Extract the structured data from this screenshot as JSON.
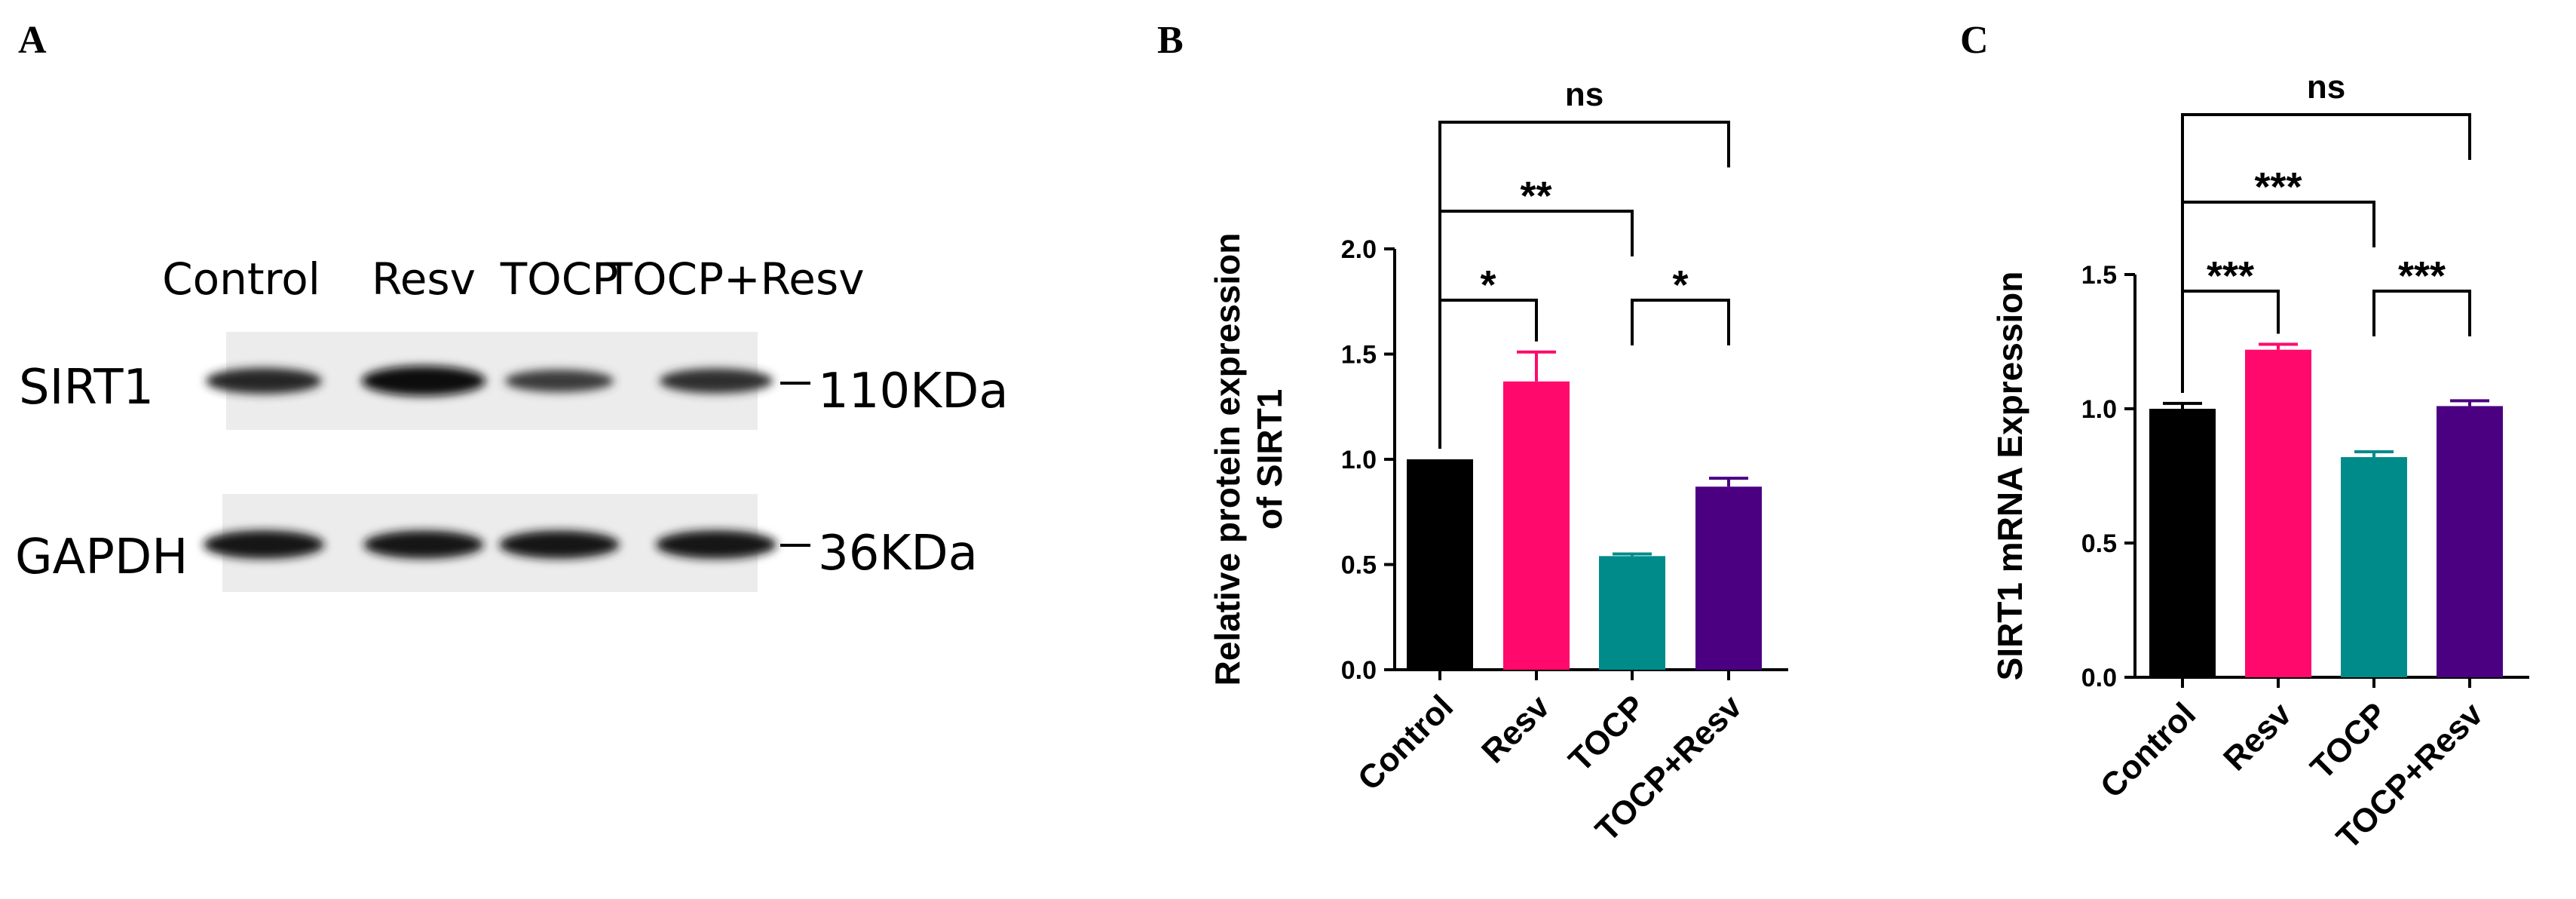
{
  "panels": {
    "a": {
      "label": "A"
    },
    "b": {
      "label": "B"
    },
    "c": {
      "label": "C"
    }
  },
  "western_blot": {
    "lanes": [
      "Control",
      "Resv",
      "TOCP",
      "TOCP+Resv"
    ],
    "proteins": [
      {
        "name": "SIRT1",
        "size_label": "110KDa",
        "band_intensity": [
          0.75,
          1.0,
          0.55,
          0.68
        ]
      },
      {
        "name": "GAPDH",
        "size_label": "36KDa",
        "band_intensity": [
          0.9,
          0.88,
          0.88,
          0.9
        ]
      }
    ]
  },
  "colors": {
    "Control": "#000000",
    "Resv": "#ff0a6c",
    "TOCP": "#008b8b",
    "TOCP+Resv": "#4b0082"
  },
  "chart_data": [
    {
      "panel": "B",
      "type": "bar",
      "categories": [
        "Control",
        "Resv",
        "TOCP",
        "TOCP+Resv"
      ],
      "values": [
        1.0,
        1.37,
        0.54,
        0.87
      ],
      "errors": [
        0.0,
        0.14,
        0.01,
        0.04
      ],
      "ylabel": "Relative protein expression of SIRT1",
      "ylabel_lines": [
        "Relative protein expression",
        "of SIRT1"
      ],
      "ylim": [
        0,
        2.0
      ],
      "yticks": [
        0.0,
        0.5,
        1.0,
        1.5,
        2.0
      ],
      "ytick_labels": [
        "0.0",
        "0.5",
        "1.0",
        "1.5",
        "2.0"
      ],
      "significance": [
        {
          "from": 0,
          "to": 1,
          "label": "*"
        },
        {
          "from": 2,
          "to": 3,
          "label": "*"
        },
        {
          "from": 0,
          "to": 2,
          "label": "**"
        },
        {
          "from": 0,
          "to": 3,
          "label": "ns"
        }
      ]
    },
    {
      "panel": "C",
      "type": "bar",
      "categories": [
        "Control",
        "Resv",
        "TOCP",
        "TOCP+Resv"
      ],
      "values": [
        1.0,
        1.22,
        0.82,
        1.01
      ],
      "errors": [
        0.02,
        0.02,
        0.02,
        0.02
      ],
      "ylabel": "SIRT1 mRNA Expression",
      "ylabel_lines": [
        "SIRT1 mRNA Expression"
      ],
      "ylim": [
        0,
        1.5
      ],
      "yticks": [
        0.0,
        0.5,
        1.0,
        1.5
      ],
      "ytick_labels": [
        "0.0",
        "0.5",
        "1.0",
        "1.5"
      ],
      "significance": [
        {
          "from": 0,
          "to": 1,
          "label": "***"
        },
        {
          "from": 2,
          "to": 3,
          "label": "***"
        },
        {
          "from": 0,
          "to": 2,
          "label": "***"
        },
        {
          "from": 0,
          "to": 3,
          "label": "ns"
        }
      ]
    }
  ]
}
